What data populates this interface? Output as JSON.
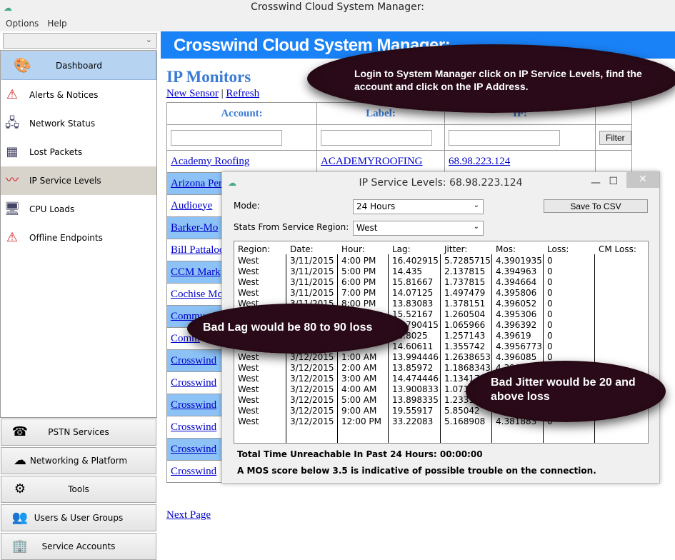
{
  "window": {
    "title": "Crosswind Cloud System Manager:"
  },
  "menu": [
    "Options",
    "Help"
  ],
  "sidebar": {
    "dashboard": "Dashboard",
    "items": [
      {
        "label": "Alerts & Notices",
        "icon": "alert-icon"
      },
      {
        "label": "Network Status",
        "icon": "network-icon"
      },
      {
        "label": "Lost Packets",
        "icon": "packets-icon"
      },
      {
        "label": "IP Service Levels",
        "icon": "graph-icon",
        "selected": true
      },
      {
        "label": "CPU Loads",
        "icon": "monitor-icon"
      },
      {
        "label": "Offline Endpoints",
        "icon": "alert-icon"
      }
    ],
    "panels": [
      "PSTN Services",
      "Networking & Platform",
      "Tools",
      "Users & User Groups",
      "Service Accounts"
    ]
  },
  "banner": "Crosswind Cloud System Manager:",
  "page": {
    "title": "IP Monitors",
    "new_sensor": "New Sensor",
    "sep": "|",
    "refresh": "Refresh",
    "next_page": "Next Page",
    "headers": [
      "Account:",
      "Label:",
      "IP:"
    ],
    "filter": "Filter",
    "rows": [
      [
        "Academy Roofing",
        "ACADEMYROOFING",
        "68.98.223.124"
      ],
      [
        "Arizona Per"
      ],
      [
        "Audioeye"
      ],
      [
        "Barker-Mo"
      ],
      [
        "Bill Pattaloc"
      ],
      [
        "CCM Mark"
      ],
      [
        "Cochise Mc"
      ],
      [
        "Commu"
      ],
      [
        "Comm"
      ],
      [
        "Crosswind"
      ],
      [
        "Crosswind"
      ],
      [
        "Crosswind"
      ],
      [
        "Crosswind"
      ],
      [
        "Crosswind"
      ],
      [
        "Crosswind"
      ]
    ]
  },
  "dialog": {
    "title": "IP Service Levels: 68.98.223.124",
    "mode_label": "Mode:",
    "mode_value": "24 Hours",
    "region_label": "Stats From Service Region:",
    "region_value": "West",
    "save": "Save To CSV",
    "columns": [
      "Region:",
      "Date:",
      "Hour:",
      "Lag:",
      "Jitter:",
      "Mos:",
      "Loss:",
      "CM Loss:"
    ],
    "rows": [
      [
        "West",
        "3/11/2015",
        "4:00 PM",
        "16.402915",
        "5.7285715",
        "4.3901935",
        "0",
        ""
      ],
      [
        "West",
        "3/11/2015",
        "5:00 PM",
        "14.435",
        "2.137815",
        "4.394963",
        "0",
        ""
      ],
      [
        "West",
        "3/11/2015",
        "6:00 PM",
        "15.81667",
        "1.737815",
        "4.394664",
        "0",
        ""
      ],
      [
        "West",
        "3/11/2015",
        "7:00 PM",
        "14.07125",
        "1.497479",
        "4.395806",
        "0",
        ""
      ],
      [
        "West",
        "3/11/2015",
        "8:00 PM",
        "13.83083",
        "1.378151",
        "4.396052",
        "0",
        ""
      ],
      [
        "",
        "",
        "PM",
        "15.52167",
        "1.260504",
        "4.395306",
        "0",
        ""
      ],
      [
        "",
        "",
        "",
        "13.790415",
        "1.065966",
        "4.396392",
        "0",
        ""
      ],
      [
        "",
        "",
        "",
        "13.8025",
        "1.257143",
        "4.39619",
        "0",
        ""
      ],
      [
        "",
        "",
        "AM",
        "14.60611",
        "1.355742",
        "4.39567733...",
        "0",
        ""
      ],
      [
        "West",
        "3/12/2015",
        "1:00 AM",
        "13.9944466...",
        "1.26386533...",
        "4.396085",
        "0",
        ""
      ],
      [
        "West",
        "3/12/2015",
        "2:00 AM",
        "13.85972",
        "1.18683433...",
        "4.39622366...",
        "",
        ""
      ],
      [
        "West",
        "3/12/2015",
        "3:00 AM",
        "14.4744466...",
        "1.134174",
        "",
        "",
        ""
      ],
      [
        "West",
        "3/12/2015",
        "4:00 AM",
        "13.9008333...",
        "1.0711",
        "",
        "",
        ""
      ],
      [
        "West",
        "3/12/2015",
        "5:00 AM",
        "13.898335",
        "1.233193",
        "",
        "",
        ""
      ],
      [
        "West",
        "3/12/2015",
        "9:00 AM",
        "19.55917",
        "5.85042",
        "4.38",
        "",
        ""
      ],
      [
        "West",
        "3/12/2015",
        "12:00 PM",
        "33.22083",
        "5.168908",
        "4.381883",
        "0",
        ""
      ]
    ],
    "unreachable": "Total Time Unreachable In Past 24 Hours: 00:00:00",
    "note": "A MOS score below 3.5 is indicative of possible trouble on the connection."
  },
  "callouts": [
    "Login to System Manager click on IP Service Levels, find the account and click on the IP Address.",
    "Bad Lag would be 80 to 90 loss",
    "Bad Jitter would be 20 and above loss"
  ],
  "colors": {
    "banner": "#1a82f7",
    "row_alt": "#8cc2f5",
    "callout": "#2a0a18",
    "title_blue": "#3a7bd5"
  }
}
